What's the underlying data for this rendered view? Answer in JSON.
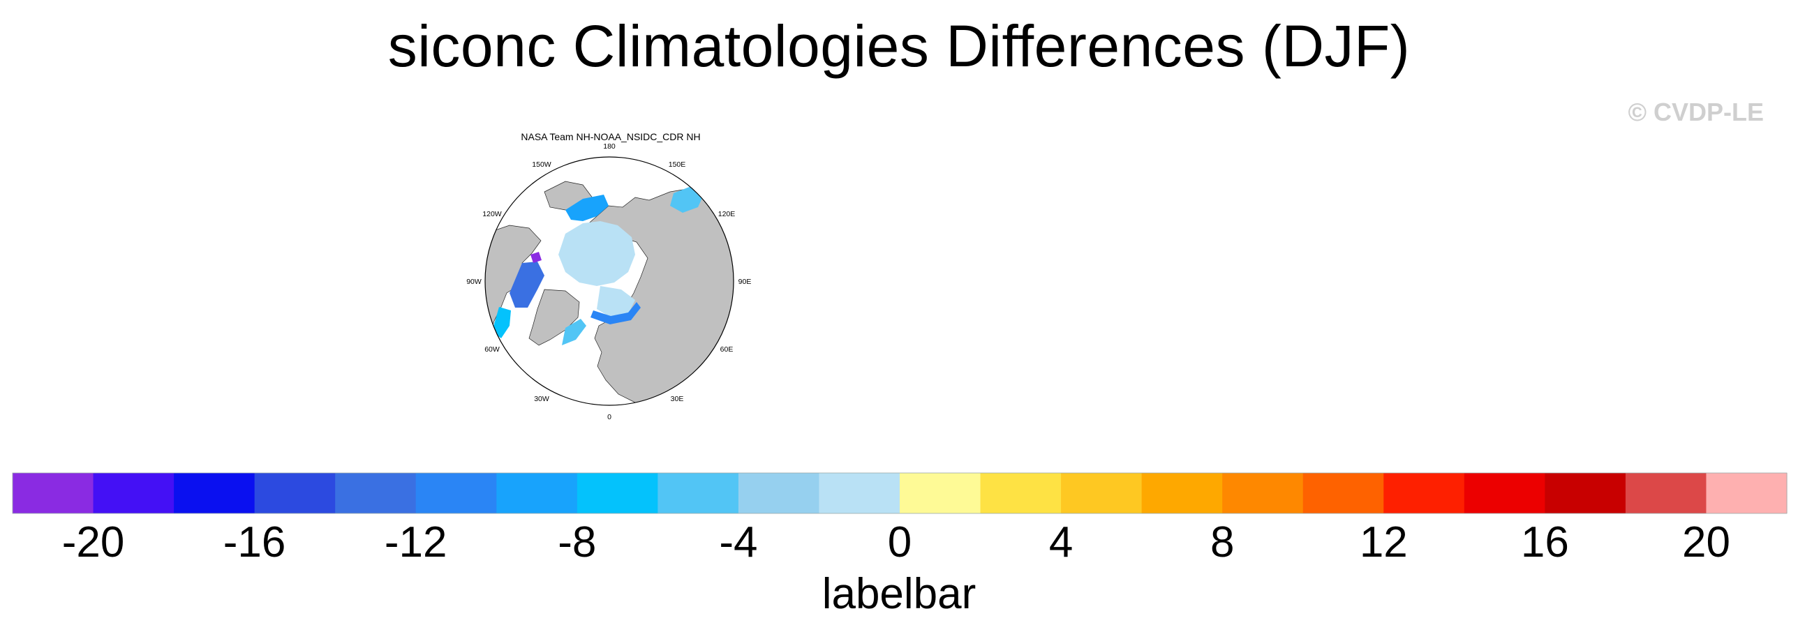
{
  "title": "siconc Climatologies Differences (DJF)",
  "watermark": "© CVDP-LE",
  "panel": {
    "title": "NASA Team NH-NOAA_NSIDC_CDR NH",
    "lon_labels": [
      {
        "label": "180",
        "deg": 180
      },
      {
        "label": "150E",
        "deg": 150
      },
      {
        "label": "120E",
        "deg": 120
      },
      {
        "label": "90E",
        "deg": 90
      },
      {
        "label": "60E",
        "deg": 60
      },
      {
        "label": "30E",
        "deg": 30
      },
      {
        "label": "0",
        "deg": 0
      },
      {
        "label": "30W",
        "deg": -30
      },
      {
        "label": "60W",
        "deg": -60
      },
      {
        "label": "90W",
        "deg": -90
      },
      {
        "label": "120W",
        "deg": -120
      },
      {
        "label": "150W",
        "deg": -150
      }
    ]
  },
  "chart_data": {
    "type": "heatmap",
    "projection": "north polar stereographic",
    "title": "siconc Climatologies Differences (DJF)",
    "panel_title": "NASA Team NH-NOAA_NSIDC_CDR NH",
    "land_color": "#c0c0c0",
    "colorbar": {
      "title": "labelbar",
      "levels": [
        -20,
        -18,
        -16,
        -14,
        -12,
        -10,
        -8,
        -6,
        -4,
        -2,
        0,
        2,
        4,
        6,
        8,
        10,
        12,
        14,
        16,
        18,
        20
      ],
      "tick_labels": [
        "-20",
        "-16",
        "-12",
        "-8",
        "-4",
        "0",
        "4",
        "8",
        "12",
        "16",
        "20"
      ],
      "colors": [
        "#8a2be2",
        "#4410f5",
        "#0a10f0",
        "#2c4ae0",
        "#3a70e2",
        "#2a85f5",
        "#18a3fc",
        "#04c2fc",
        "#52c5f5",
        "#96d0ef",
        "#b9e1f5",
        "#fefa96",
        "#fee244",
        "#fec822",
        "#fea800",
        "#fe8800",
        "#fe6200",
        "#fe2000",
        "#ec0000",
        "#c80000",
        "#dc4848",
        "#feb0b0"
      ]
    }
  }
}
